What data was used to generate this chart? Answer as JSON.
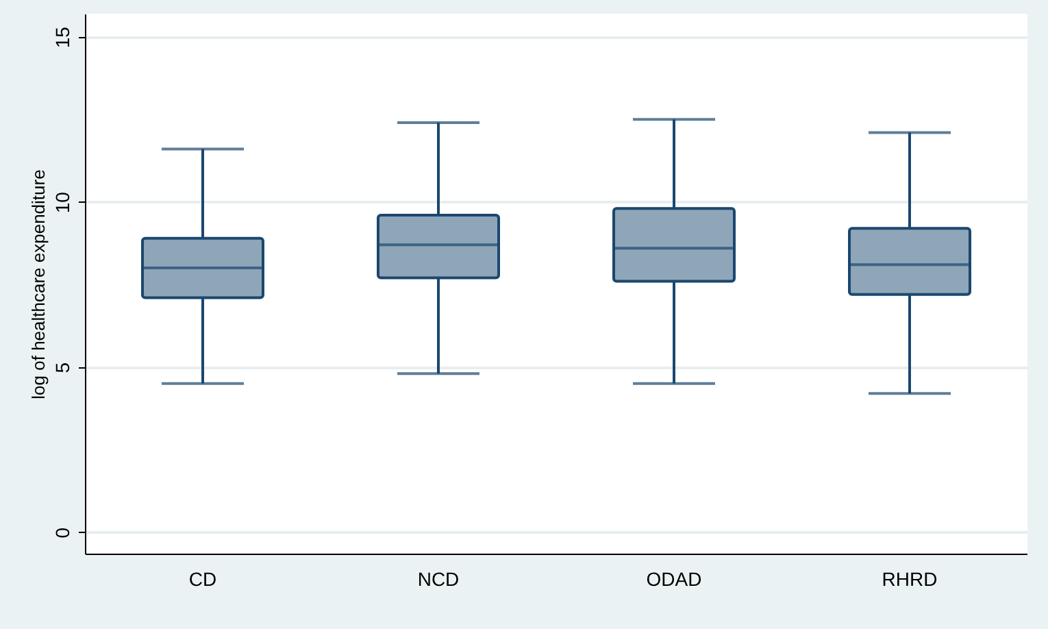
{
  "chart_data": {
    "type": "box",
    "ylabel": "log of healthcare expenditure",
    "categories": [
      "CD",
      "NCD",
      "ODAD",
      "RHRD"
    ],
    "boxes": [
      {
        "low": 4.5,
        "q1": 7.1,
        "median": 8.0,
        "q3": 8.9,
        "high": 11.6
      },
      {
        "low": 4.8,
        "q1": 7.7,
        "median": 8.7,
        "q3": 9.6,
        "high": 12.4
      },
      {
        "low": 4.5,
        "q1": 7.6,
        "median": 8.6,
        "q3": 9.8,
        "high": 12.5
      },
      {
        "low": 4.2,
        "q1": 7.2,
        "median": 8.1,
        "q3": 9.2,
        "high": 12.1
      }
    ],
    "color": "#8fa5b8",
    "ylim": [
      -0.65,
      15.7
    ],
    "yticks": [
      0,
      5,
      10,
      15
    ],
    "grid": "y"
  }
}
